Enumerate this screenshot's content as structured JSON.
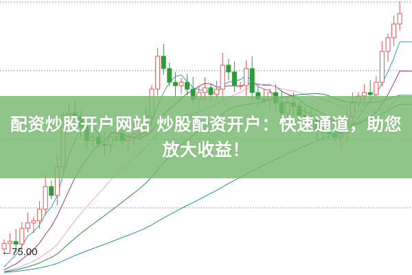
{
  "banner": {
    "line1": "配资炒股开户网站 炒股配资开户：快速通道，助您",
    "line2": "放大收益！"
  },
  "chart_data": {
    "type": "candlestick",
    "title": "",
    "xlabel": "",
    "ylabel": "",
    "ylim": [
      72.0,
      111.8
    ],
    "grid": true,
    "low_marker_label": "75.00",
    "low_marker_value": 75.0,
    "first_open": 75.5,
    "closes": [
      76.3,
      76.6,
      76.2,
      78.5,
      79.3,
      79.6,
      81.3,
      84.6,
      83.3,
      87.5,
      95.0,
      95.3,
      94.8,
      93.3,
      91.3,
      91.8,
      90.8,
      90.6,
      91.8,
      92.3,
      91.3,
      91.8,
      92.3,
      92.6,
      94.8,
      98.8,
      103.6,
      101.8,
      99.8,
      99.3,
      99.8,
      98.8,
      97.3,
      98.3,
      99.0,
      98.0,
      98.8,
      102.3,
      101.3,
      99.3,
      99.3,
      101.8,
      98.3,
      97.3,
      97.3,
      98.3,
      96.8,
      95.3,
      96.8,
      96.3,
      95.0,
      93.8,
      94.3,
      92.8,
      92.6,
      92.3,
      91.8,
      92.3,
      94.8,
      96.8,
      97.8,
      98.3,
      98.0,
      99.8,
      104.3,
      106.3,
      108.3,
      109.8
    ],
    "moving_averages": [
      {
        "period": 5,
        "color": "#3a9aa0"
      },
      {
        "period": 10,
        "color": "#8a3a7a"
      },
      {
        "period": 20,
        "color": "#e0a0e0"
      },
      {
        "period": 30,
        "color": "#2f8a3a"
      },
      {
        "period": 60,
        "color": "#2a8aa0"
      }
    ],
    "colors": {
      "up": "#d9534f",
      "down": "#2e9a3a",
      "grid": "#999999"
    }
  }
}
